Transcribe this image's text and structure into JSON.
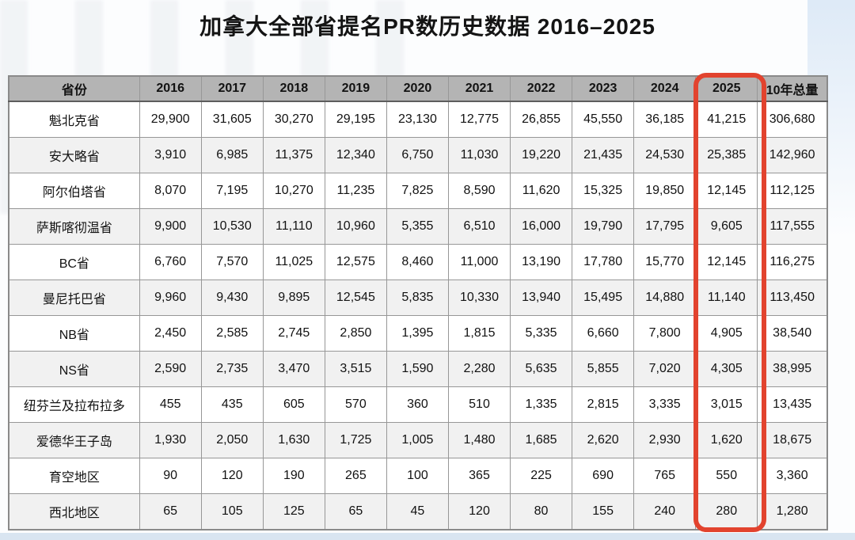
{
  "title": "加拿大全部省提名PR数历史数据 2016–2025",
  "chart_data": {
    "type": "table",
    "title": "加拿大全部省提名PR数历史数据 2016–2025",
    "columns": [
      "省份",
      "2016",
      "2017",
      "2018",
      "2019",
      "2020",
      "2021",
      "2022",
      "2023",
      "2024",
      "2025",
      "10年总量"
    ],
    "highlighted_column": "2025",
    "rows": [
      {
        "province": "魁北克省",
        "values": [
          "29,900",
          "31,605",
          "30,270",
          "29,195",
          "23,130",
          "12,775",
          "26,855",
          "45,550",
          "36,185",
          "41,215",
          "306,680"
        ]
      },
      {
        "province": "安大略省",
        "values": [
          "3,910",
          "6,985",
          "11,375",
          "12,340",
          "6,750",
          "11,030",
          "19,220",
          "21,435",
          "24,530",
          "25,385",
          "142,960"
        ]
      },
      {
        "province": "阿尔伯塔省",
        "values": [
          "8,070",
          "7,195",
          "10,270",
          "11,235",
          "7,825",
          "8,590",
          "11,620",
          "15,325",
          "19,850",
          "12,145",
          "112,125"
        ]
      },
      {
        "province": "萨斯喀彻温省",
        "values": [
          "9,900",
          "10,530",
          "11,110",
          "10,960",
          "5,355",
          "6,510",
          "16,000",
          "19,790",
          "17,795",
          "9,605",
          "117,555"
        ]
      },
      {
        "province": "BC省",
        "values": [
          "6,760",
          "7,570",
          "11,025",
          "12,575",
          "8,460",
          "11,000",
          "13,190",
          "17,780",
          "15,770",
          "12,145",
          "116,275"
        ]
      },
      {
        "province": "曼尼托巴省",
        "values": [
          "9,960",
          "9,430",
          "9,895",
          "12,545",
          "5,835",
          "10,330",
          "13,940",
          "15,495",
          "14,880",
          "11,140",
          "113,450"
        ]
      },
      {
        "province": "NB省",
        "values": [
          "2,450",
          "2,585",
          "2,745",
          "2,850",
          "1,395",
          "1,815",
          "5,335",
          "6,660",
          "7,800",
          "4,905",
          "38,540"
        ]
      },
      {
        "province": "NS省",
        "values": [
          "2,590",
          "2,735",
          "3,470",
          "3,515",
          "1,590",
          "2,280",
          "5,635",
          "5,855",
          "7,020",
          "4,305",
          "38,995"
        ]
      },
      {
        "province": "纽芬兰及拉布拉多",
        "values": [
          "455",
          "435",
          "605",
          "570",
          "360",
          "510",
          "1,335",
          "2,815",
          "3,335",
          "3,015",
          "13,435"
        ]
      },
      {
        "province": "爱德华王子岛",
        "values": [
          "1,930",
          "2,050",
          "1,630",
          "1,725",
          "1,005",
          "1,480",
          "1,685",
          "2,620",
          "2,930",
          "1,620",
          "18,675"
        ]
      },
      {
        "province": "育空地区",
        "values": [
          "90",
          "120",
          "190",
          "265",
          "100",
          "365",
          "225",
          "690",
          "765",
          "550",
          "3,360"
        ]
      },
      {
        "province": "西北地区",
        "values": [
          "65",
          "105",
          "125",
          "65",
          "45",
          "120",
          "80",
          "155",
          "240",
          "280",
          "1,280"
        ]
      }
    ]
  },
  "colors": {
    "highlight_box": "#e2432e",
    "header_bg": "#b4b4b4",
    "row_alt_bg": "#f1f1f1",
    "cell_border": "#979797",
    "bottom_strip": "#d9e5f1"
  }
}
